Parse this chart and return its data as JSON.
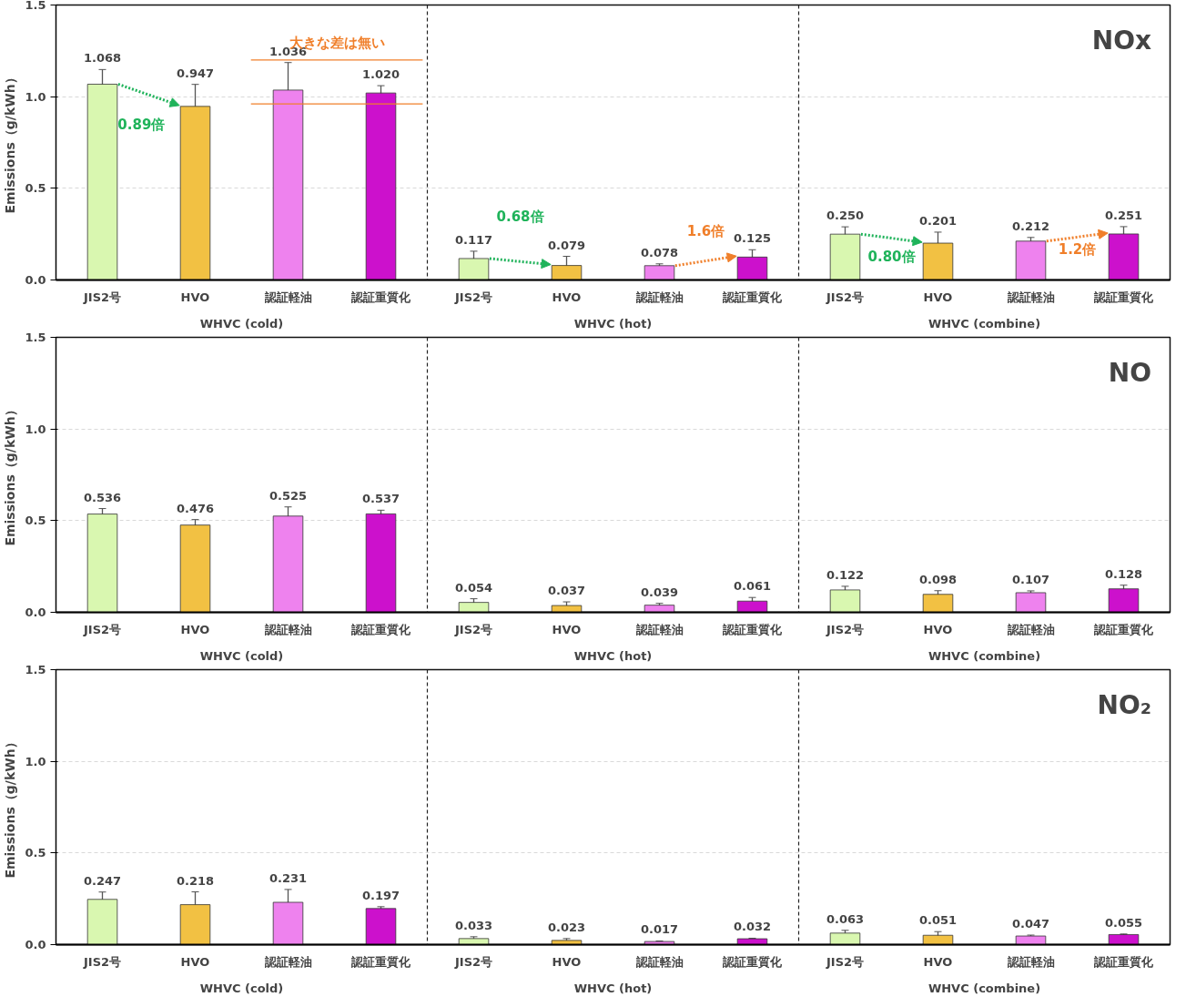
{
  "chart_data": [
    {
      "type": "bar",
      "title": "NOx",
      "ylabel": "Emissions（g/kWh）",
      "categories": [
        "JIS2号",
        "HVO",
        "認証軽油",
        "認証重質化",
        "JIS2号",
        "HVO",
        "認証軽油",
        "認証重質化",
        "JIS2号",
        "HVO",
        "認証軽油",
        "認証重質化"
      ],
      "values": [
        1.068,
        0.947,
        1.036,
        1.02,
        0.117,
        0.079,
        0.078,
        0.125,
        0.25,
        0.201,
        0.212,
        0.251
      ],
      "value_labels": [
        "1.068",
        "0.947",
        "1.036",
        "1.020",
        "0.117",
        "0.079",
        "0.078",
        "0.125",
        "0.250",
        "0.201",
        "0.212",
        "0.251"
      ],
      "errors": [
        0.08,
        0.12,
        0.15,
        0.04,
        0.04,
        0.05,
        0.01,
        0.04,
        0.04,
        0.06,
        0.02,
        0.04
      ],
      "colors": [
        "#d9f7b0",
        "#f2c143",
        "#ee82ee",
        "#cc11cc",
        "#d9f7b0",
        "#f2c143",
        "#ee82ee",
        "#cc11cc",
        "#d9f7b0",
        "#f2c143",
        "#ee82ee",
        "#cc11cc"
      ],
      "ylim": [
        0,
        1.5
      ],
      "yticks": [
        {
          "value": 0,
          "label": "0.0"
        },
        {
          "value": 0.5,
          "label": "0.5"
        },
        {
          "value": 1,
          "label": "1.0"
        },
        {
          "value": 1.5,
          "label": "1.5"
        }
      ],
      "grid": "y",
      "ref_lines": [
        {
          "axis": "y",
          "value": 1.2,
          "label": "大きな差は無い",
          "color": "#f07f2a"
        },
        {
          "axis": "y",
          "value": 0.96,
          "color": "#f07f2a"
        }
      ],
      "annotations": [
        "WHVC (cold)",
        "WHVC (hot)",
        "WHVC (combine)",
        "0.89倍",
        "0.68倍",
        "1.6倍",
        "0.80倍",
        "1.2倍"
      ]
    },
    {
      "type": "bar",
      "title": "NO",
      "ylabel": "Emissions（g/kWh）",
      "categories": [
        "JIS2号",
        "HVO",
        "認証軽油",
        "認証重質化",
        "JIS2号",
        "HVO",
        "認証軽油",
        "認証重質化",
        "JIS2号",
        "HVO",
        "認証軽油",
        "認証重質化"
      ],
      "values": [
        0.536,
        0.476,
        0.525,
        0.537,
        0.054,
        0.037,
        0.039,
        0.061,
        0.122,
        0.098,
        0.107,
        0.128
      ],
      "value_labels": [
        "0.536",
        "0.476",
        "0.525",
        "0.537",
        "0.054",
        "0.037",
        "0.039",
        "0.061",
        "0.122",
        "0.098",
        "0.107",
        "0.128"
      ],
      "errors": [
        0.03,
        0.03,
        0.05,
        0.02,
        0.02,
        0.02,
        0.01,
        0.02,
        0.02,
        0.02,
        0.01,
        0.02
      ],
      "colors": [
        "#d9f7b0",
        "#f2c143",
        "#ee82ee",
        "#cc11cc",
        "#d9f7b0",
        "#f2c143",
        "#ee82ee",
        "#cc11cc",
        "#d9f7b0",
        "#f2c143",
        "#ee82ee",
        "#cc11cc"
      ],
      "ylim": [
        0,
        1.5
      ],
      "yticks": [
        {
          "value": 0,
          "label": "0.0"
        },
        {
          "value": 0.5,
          "label": "0.5"
        },
        {
          "value": 1,
          "label": "1.0"
        },
        {
          "value": 1.5,
          "label": "1.5"
        }
      ],
      "grid": "y",
      "annotations": [
        "WHVC (cold)",
        "WHVC (hot)",
        "WHVC (combine)"
      ]
    },
    {
      "type": "bar",
      "title": "NO₂",
      "ylabel": "Emissions（g/kWh）",
      "categories": [
        "JIS2号",
        "HVO",
        "認証軽油",
        "認証重質化",
        "JIS2号",
        "HVO",
        "認証軽油",
        "認証重質化",
        "JIS2号",
        "HVO",
        "認証軽油",
        "認証重質化"
      ],
      "values": [
        0.247,
        0.218,
        0.231,
        0.197,
        0.033,
        0.023,
        0.017,
        0.032,
        0.063,
        0.051,
        0.047,
        0.055
      ],
      "value_labels": [
        "0.247",
        "0.218",
        "0.231",
        "0.197",
        "0.033",
        "0.023",
        "0.017",
        "0.032",
        "0.063",
        "0.051",
        "0.047",
        "0.055"
      ],
      "errors": [
        0.04,
        0.07,
        0.07,
        0.01,
        0.01,
        0.01,
        0.003,
        0.003,
        0.015,
        0.02,
        0.005,
        0.003
      ],
      "colors": [
        "#d9f7b0",
        "#f2c143",
        "#ee82ee",
        "#cc11cc",
        "#d9f7b0",
        "#f2c143",
        "#ee82ee",
        "#cc11cc",
        "#d9f7b0",
        "#f2c143",
        "#ee82ee",
        "#cc11cc"
      ],
      "ylim": [
        0,
        1.5
      ],
      "yticks": [
        {
          "value": 0,
          "label": "0.0"
        },
        {
          "value": 0.5,
          "label": "0.5"
        },
        {
          "value": 1,
          "label": "1.0"
        },
        {
          "value": 1.5,
          "label": "1.5"
        }
      ],
      "grid": "y",
      "annotations": [
        "WHVC (cold)",
        "WHVC (hot)",
        "WHVC (combine)"
      ]
    }
  ]
}
